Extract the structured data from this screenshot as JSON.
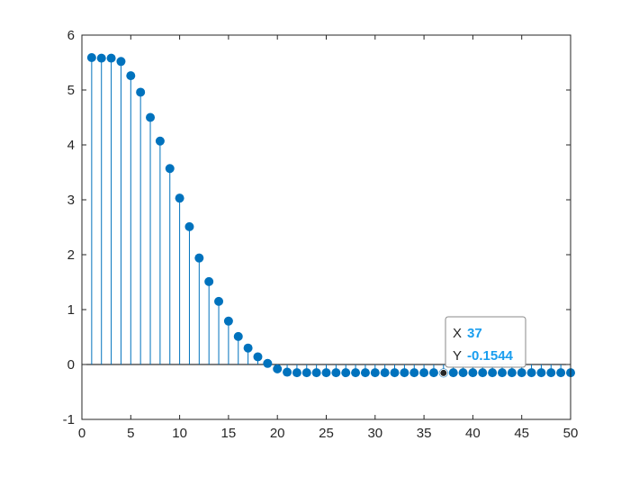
{
  "chart_data": {
    "type": "stem",
    "title": "",
    "xlabel": "",
    "ylabel": "",
    "xlim": [
      0,
      50
    ],
    "ylim": [
      -1,
      6
    ],
    "xticks": [
      "0",
      "5",
      "10",
      "15",
      "20",
      "25",
      "30",
      "35",
      "40",
      "45",
      "50"
    ],
    "yticks": [
      "-1",
      "0",
      "1",
      "2",
      "3",
      "4",
      "5",
      "6"
    ],
    "grid": false,
    "box": true,
    "series_color": "#0072BD",
    "x": [
      1,
      2,
      3,
      4,
      5,
      6,
      7,
      8,
      9,
      10,
      11,
      12,
      13,
      14,
      15,
      16,
      17,
      18,
      19,
      20,
      21,
      22,
      23,
      24,
      25,
      26,
      27,
      28,
      29,
      30,
      31,
      32,
      33,
      34,
      35,
      36,
      37,
      38,
      39,
      40,
      41,
      42,
      43,
      44,
      45,
      46,
      47,
      48,
      49,
      50
    ],
    "values": [
      5.59,
      5.58,
      5.58,
      5.52,
      5.26,
      4.96,
      4.5,
      4.07,
      3.57,
      3.03,
      2.51,
      1.94,
      1.51,
      1.15,
      0.79,
      0.51,
      0.3,
      0.14,
      0.02,
      -0.08,
      -0.14,
      -0.15,
      -0.15,
      -0.15,
      -0.15,
      -0.15,
      -0.15,
      -0.15,
      -0.15,
      -0.15,
      -0.15,
      -0.15,
      -0.15,
      -0.15,
      -0.15,
      -0.15,
      -0.1544,
      -0.15,
      -0.15,
      -0.15,
      -0.15,
      -0.15,
      -0.15,
      -0.15,
      -0.15,
      -0.15,
      -0.15,
      -0.15,
      -0.15,
      -0.15
    ],
    "datatip": {
      "x_label": "X",
      "x_value": "37",
      "y_label": "Y",
      "y_value": "-0.1544",
      "x": 37,
      "y": -0.1544
    }
  }
}
